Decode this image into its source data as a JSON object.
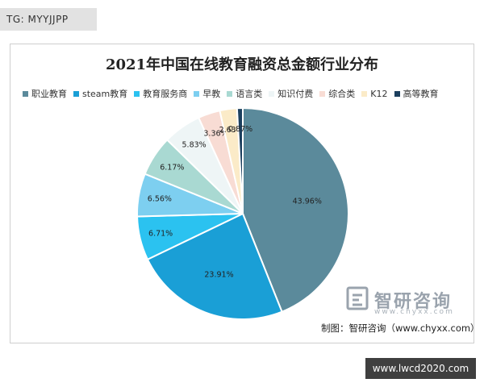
{
  "badge": {
    "text": "TG: MYYJJPP"
  },
  "site_badge": {
    "text": "www.lwcd2020.com"
  },
  "watermark": {
    "name_cn": "智研咨询",
    "url": "www.chyxx.com"
  },
  "credit": {
    "text": "制图：智研咨询（www.chyxx.com）"
  },
  "chart_data": {
    "type": "pie",
    "title": "2021年中国在线教育融资总金额行业分布",
    "legend_placement": "top",
    "categories": [
      "职业教育",
      "steam教育",
      "教育服务商",
      "早教",
      "语言类",
      "知识付费",
      "综合类",
      "K12",
      "高等教育"
    ],
    "values": [
      43.96,
      23.91,
      6.71,
      6.56,
      6.17,
      5.83,
      3.36,
      2.63,
      0.87
    ],
    "value_labels": [
      "43.96%",
      "23.91%",
      "6.71%",
      "6.56%",
      "6.17%",
      "5.83%",
      "3.36%",
      "2.63%",
      "0.87%"
    ],
    "colors": [
      "#5b8a9b",
      "#1a9fd6",
      "#2bc2f0",
      "#7dcff0",
      "#a9d9d2",
      "#eef5f6",
      "#f8dcd4",
      "#fbebc8",
      "#1c3f5e"
    ]
  }
}
